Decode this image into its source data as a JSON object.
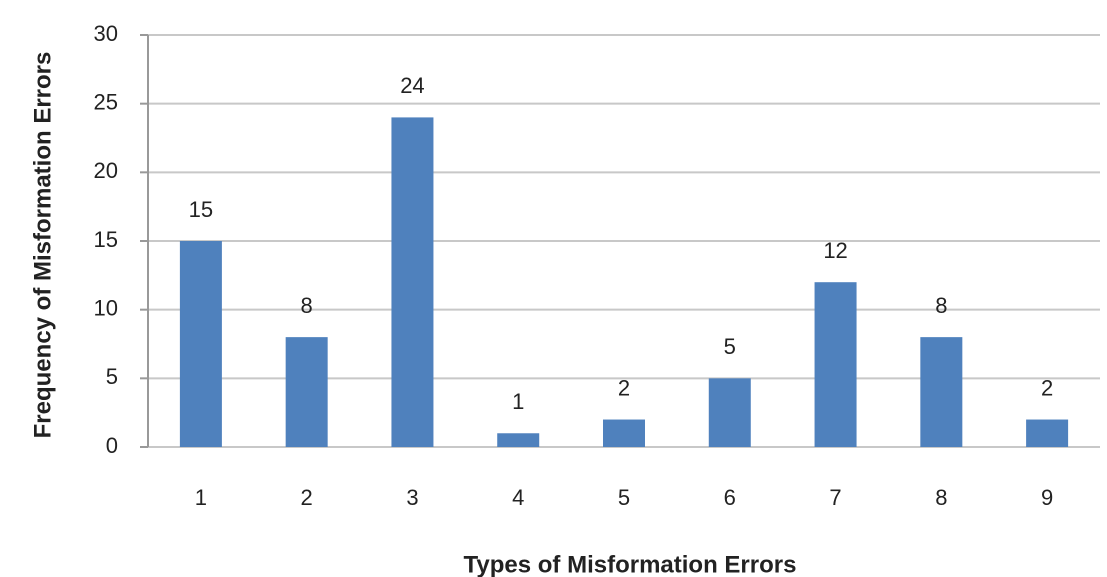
{
  "chart_data": {
    "type": "bar",
    "x_label": "Types of Misformation Errors",
    "y_label": "Frequency of Misformation Errors",
    "categories": [
      "1",
      "2",
      "3",
      "4",
      "5",
      "6",
      "7",
      "8",
      "9"
    ],
    "values": [
      15,
      8,
      24,
      1,
      2,
      5,
      12,
      8,
      2
    ],
    "color": "#4f81bd",
    "ylim": [
      0,
      30
    ],
    "yticks": [
      0,
      5,
      10,
      15,
      20,
      25,
      30
    ],
    "grid": true
  }
}
